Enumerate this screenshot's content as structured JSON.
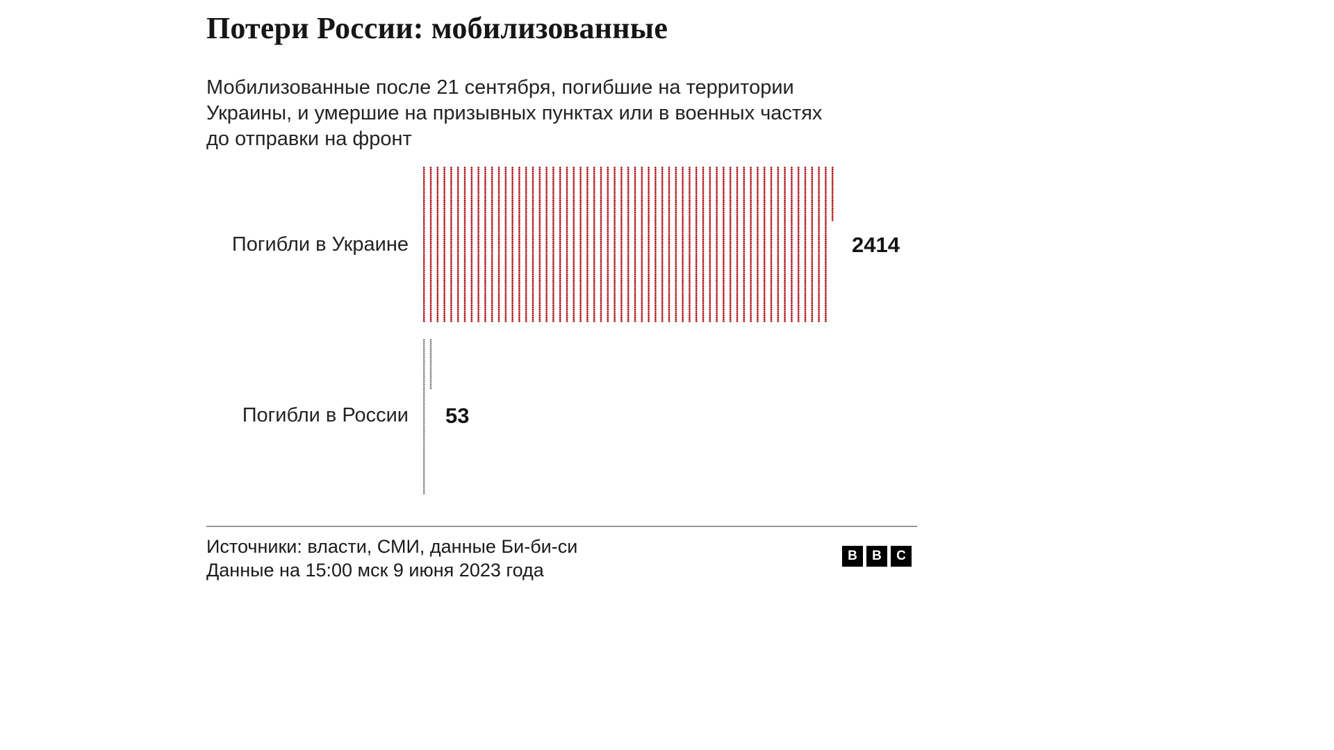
{
  "header": {
    "title": "Потери России: мобилизованные",
    "subtitle_lines": [
      "Мобилизованные после 21 сентября, погибшие на территории",
      "Украины, и умершие на призывных пунктах или в военных частях",
      "до отправки на фронт"
    ]
  },
  "chart_data": {
    "type": "pictogram",
    "unit_icon": "person-icon",
    "categories": [
      "Погибли в Украине",
      "Погибли в России"
    ],
    "values": [
      2414,
      53
    ],
    "series_colors": [
      "#b01117",
      "#8a8a8a"
    ],
    "icons_per_column": 40,
    "col_pitch": 9.8,
    "row_pitch": 5.6,
    "legend_position": "none",
    "grid": "off"
  },
  "footer": {
    "sources": "Источники: власти, СМИ, данные Би-би-си",
    "updated": "Данные на 15:00 мск 9 июня 2023 года",
    "logo_letters": [
      "B",
      "B",
      "C"
    ]
  }
}
